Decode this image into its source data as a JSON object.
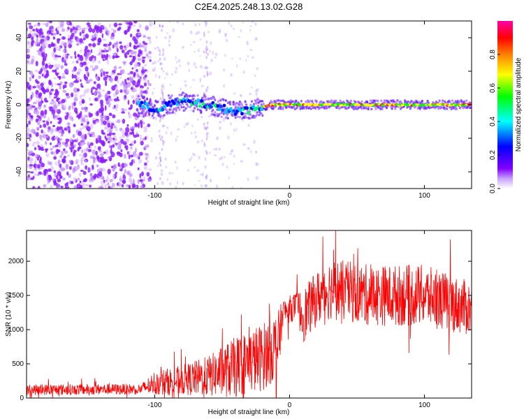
{
  "figure_title": "C2E4.2025.248.13.02.G28",
  "chart_data": [
    {
      "type": "heatmap",
      "xlabel": "Height of straight line (km)",
      "ylabel": "Frequency (Hz)",
      "xlim": [
        -195,
        135
      ],
      "ylim": [
        -50,
        50
      ],
      "x_ticks": [
        -100,
        0,
        100
      ],
      "x_tick_labels": [
        "-100",
        "0",
        "100"
      ],
      "y_ticks": [
        -40,
        -20,
        0,
        20,
        40
      ],
      "y_tick_labels": [
        "-40",
        "-20",
        "0",
        "20",
        "40"
      ],
      "colorbar": {
        "label": "Normalized spectral amplitude",
        "range": [
          0.0,
          1.0
        ],
        "ticks": [
          0.0,
          0.2,
          0.4,
          0.6,
          0.8
        ],
        "tick_labels": [
          "0.0",
          "0.2",
          "0.4",
          "0.6",
          "0.8"
        ],
        "colormap": [
          "#ffffff",
          "#8000ff",
          "#0000ff",
          "#00ffff",
          "#00ff00",
          "#ffff00",
          "#ff8000",
          "#ff0000",
          "#ff00aa"
        ]
      },
      "ridge_frequency": [
        {
          "x": -110,
          "y": 0
        },
        {
          "x": -100,
          "y": -3
        },
        {
          "x": -90,
          "y": 0
        },
        {
          "x": -80,
          "y": 2
        },
        {
          "x": -70,
          "y": 1
        },
        {
          "x": -60,
          "y": 0
        },
        {
          "x": -50,
          "y": -2
        },
        {
          "x": -40,
          "y": -4
        },
        {
          "x": -30,
          "y": -3
        },
        {
          "x": -20,
          "y": -1
        },
        {
          "x": -10,
          "y": 0
        },
        {
          "x": 0,
          "y": 0
        },
        {
          "x": 50,
          "y": 0
        },
        {
          "x": 100,
          "y": 0
        },
        {
          "x": 135,
          "y": 0
        }
      ]
    },
    {
      "type": "line",
      "xlabel": "Height of straight line (km)",
      "ylabel": "SNR (10 * v/v)",
      "xlim": [
        -195,
        135
      ],
      "ylim": [
        0,
        2450
      ],
      "x_ticks": [
        -100,
        0,
        100
      ],
      "x_tick_labels": [
        "-100",
        "0",
        "100"
      ],
      "y_ticks": [
        0,
        500,
        1000,
        1500,
        2000
      ],
      "y_tick_labels": [
        "0",
        "500",
        "1000",
        "1500",
        "2000"
      ],
      "color": "#ff0000",
      "envelope": [
        {
          "x": -195,
          "mean": 120,
          "amp": 80
        },
        {
          "x": -110,
          "mean": 130,
          "amp": 80
        },
        {
          "x": -100,
          "mean": 220,
          "amp": 180
        },
        {
          "x": -80,
          "mean": 260,
          "amp": 220
        },
        {
          "x": -60,
          "mean": 320,
          "amp": 300
        },
        {
          "x": -40,
          "mean": 450,
          "amp": 450
        },
        {
          "x": -20,
          "mean": 600,
          "amp": 500
        },
        {
          "x": -8,
          "mean": 800,
          "amp": 500
        },
        {
          "x": -5,
          "mean": 1250,
          "amp": 200
        },
        {
          "x": 5,
          "mean": 1350,
          "amp": 200
        },
        {
          "x": 10,
          "mean": 1200,
          "amp": 400
        },
        {
          "x": 20,
          "mean": 1450,
          "amp": 400
        },
        {
          "x": 30,
          "mean": 1600,
          "amp": 450
        },
        {
          "x": 60,
          "mean": 1500,
          "amp": 450
        },
        {
          "x": 100,
          "mean": 1500,
          "amp": 450
        },
        {
          "x": 135,
          "mean": 1300,
          "amp": 400
        }
      ]
    }
  ]
}
